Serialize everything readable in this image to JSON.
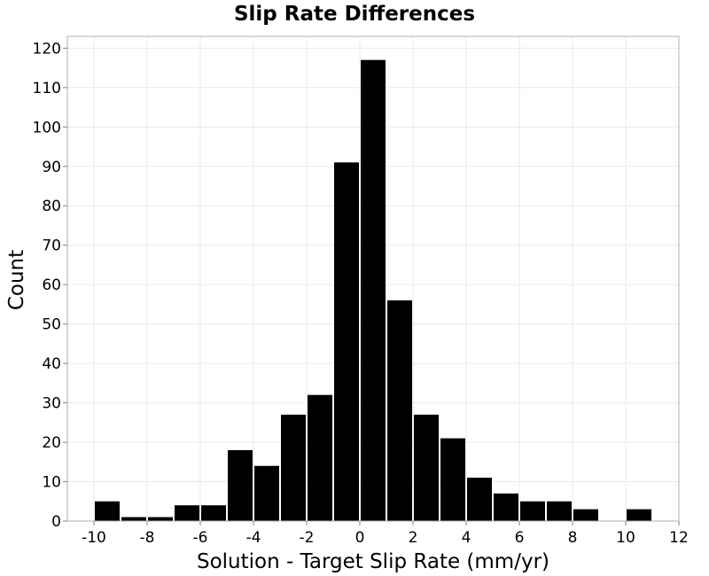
{
  "chart_data": {
    "type": "bar",
    "title": "Slip Rate Differences",
    "xlabel": "Solution - Target Slip Rate (mm/yr)",
    "ylabel": "Count",
    "xlim": [
      -11,
      12
    ],
    "ylim": [
      0,
      123
    ],
    "x_ticks": [
      -10,
      -8,
      -6,
      -4,
      -2,
      0,
      2,
      4,
      6,
      8,
      10,
      12
    ],
    "x_tick_labels": [
      "-10",
      "-8",
      "-6",
      "-4",
      "-2",
      "0",
      "2",
      "4",
      "6",
      "8",
      "10",
      "12"
    ],
    "y_ticks": [
      0,
      10,
      20,
      30,
      40,
      50,
      60,
      70,
      80,
      90,
      100,
      110,
      120
    ],
    "y_tick_labels": [
      "0",
      "10",
      "20",
      "30",
      "40",
      "50",
      "60",
      "70",
      "80",
      "90",
      "100",
      "110",
      "120"
    ],
    "bin_width": 1,
    "bin_centers": [
      -9.5,
      -8.5,
      -7.5,
      -6.5,
      -5.5,
      -4.5,
      -3.5,
      -2.5,
      -1.5,
      -0.5,
      0.5,
      1.5,
      2.5,
      3.5,
      4.5,
      5.5,
      6.5,
      7.5,
      8.5,
      9.5,
      10.5
    ],
    "values": [
      5,
      1,
      1,
      4,
      4,
      18,
      14,
      27,
      32,
      91,
      117,
      56,
      27,
      21,
      11,
      7,
      5,
      5,
      3,
      0,
      3
    ],
    "bar_color": "#000000",
    "grid": true
  }
}
